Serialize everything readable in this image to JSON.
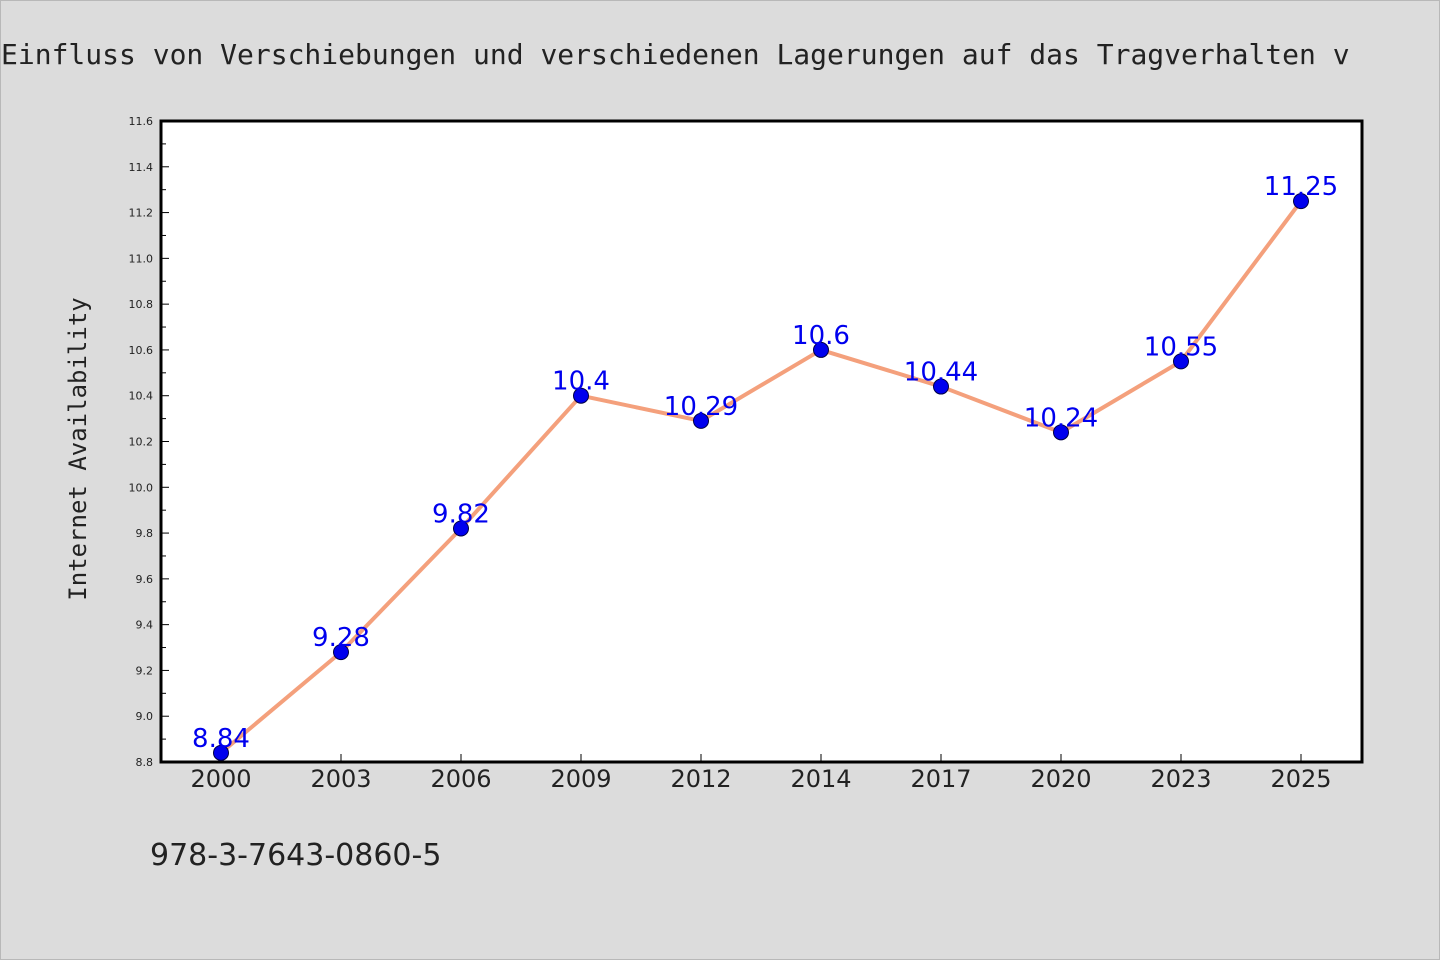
{
  "chart_data": {
    "type": "line",
    "title": "Einfluss von Verschiebungen und verschiedenen Lagerungen auf das Tragverhalten v",
    "xlabel": "",
    "ylabel": "Internet Availability",
    "categories": [
      "2000",
      "2003",
      "2006",
      "2009",
      "2012",
      "2014",
      "2017",
      "2020",
      "2023",
      "2025"
    ],
    "series": [
      {
        "values": [
          8.84,
          9.28,
          9.82,
          10.4,
          10.29,
          10.6,
          10.44,
          10.24,
          10.55,
          11.25
        ],
        "data_labels": [
          "8.84",
          "9.28",
          "9.82",
          "10.4",
          "10.29",
          "10.6",
          "10.44",
          "10.24",
          "10.55",
          "11.25"
        ],
        "line_color": "#f4a07c",
        "marker_color": "#0000ee"
      }
    ],
    "ylim": [
      8.8,
      11.6
    ],
    "y_ticks": [
      "8.8",
      "9.0",
      "9.2",
      "9.4",
      "9.6",
      "9.8",
      "10.0",
      "10.2",
      "10.4",
      "10.6",
      "10.8",
      "11.0",
      "11.2",
      "11.4",
      "11.6"
    ],
    "grid": false,
    "legend": "none"
  },
  "footnote": "978-3-7643-0860-5",
  "colors": {
    "page_background": "#dcdcdc",
    "plot_background": "#ffffff",
    "data_label": "#0000ee",
    "text": "#222222"
  }
}
